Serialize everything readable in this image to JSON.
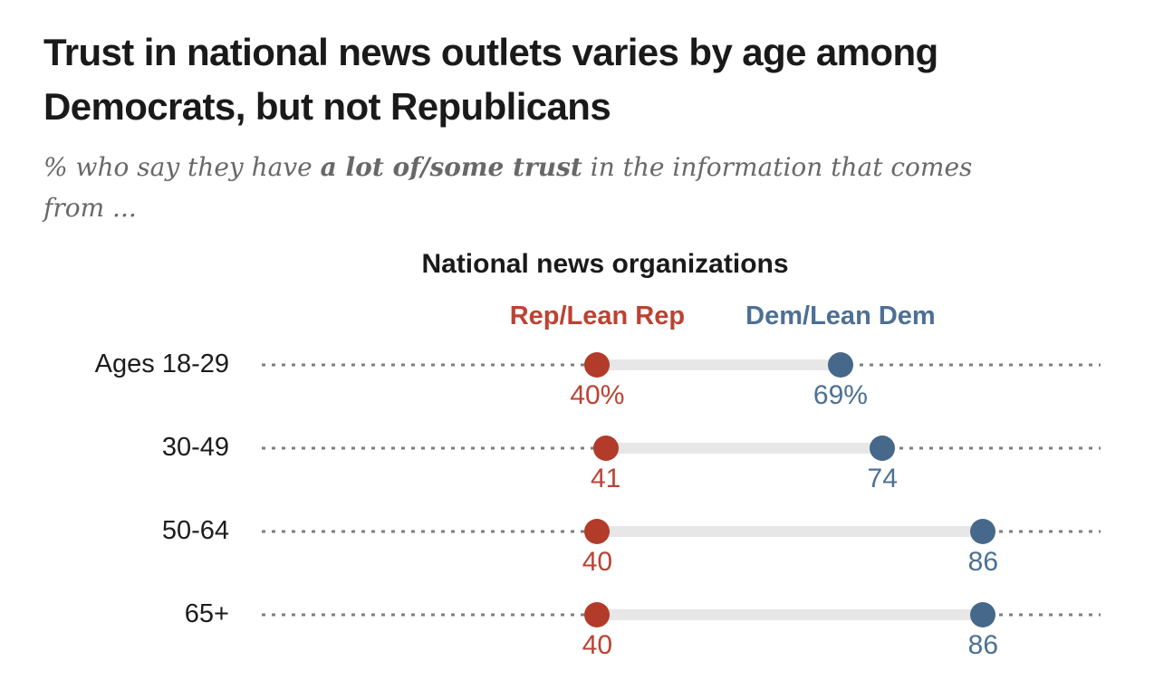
{
  "header": {
    "title": "Trust in national news outlets varies by age among Democrats, but not Republicans",
    "subtitle_prefix": "% who say they have ",
    "subtitle_bold": "a lot of/some trust",
    "subtitle_suffix": " in the information that comes",
    "subtitle_line2": "from ..."
  },
  "chart_data": {
    "type": "scatter",
    "variant": "dumbbell-dot-plot",
    "title": "National news organizations",
    "categories": [
      "Ages 18-29",
      "30-49",
      "50-64",
      "65+"
    ],
    "series": [
      {
        "name": "Rep/Lean Rep",
        "dot_color": "#b23b2a",
        "label_color": "#bc4233",
        "values": [
          40,
          41,
          40,
          40
        ],
        "value_labels": [
          "40%",
          "41",
          "40",
          "40"
        ]
      },
      {
        "name": "Dem/Lean Dem",
        "dot_color": "#46688a",
        "label_color": "#4d7094",
        "values": [
          69,
          74,
          86,
          86
        ],
        "value_labels": [
          "69%",
          "74",
          "86",
          "86"
        ]
      }
    ],
    "xlim": [
      0,
      100
    ],
    "grid": "dotted horizontal guide per category spanning 0-100",
    "legend_position": "top, each label centered over its first-row marker",
    "guide_color": "#7e7e7e",
    "connector_color": "#e7e7e7"
  }
}
